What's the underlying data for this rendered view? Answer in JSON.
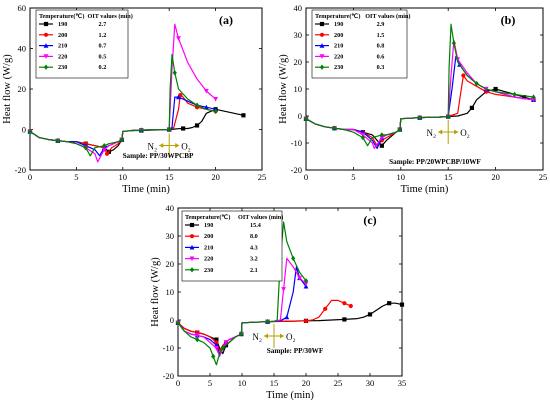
{
  "chart_data": [
    {
      "type": "line",
      "panel_label": "(a)",
      "sample": "Sample: PP/30WPCBP",
      "xlabel": "Time (min)",
      "ylabel": "Heat flow (W/g)",
      "xlim": [
        0,
        25
      ],
      "ylim": [
        -20,
        60
      ],
      "xticks": [
        0,
        5,
        10,
        15,
        20,
        25
      ],
      "yticks": [
        -20,
        0,
        20,
        40,
        60
      ],
      "legend_header": {
        "temperature": "Temperature(℃)",
        "oit": "OIT values (min)"
      },
      "legend_placement": "top-left",
      "gas_switch": {
        "before": "N₂",
        "after": "O₂",
        "x": 15
      },
      "series": [
        {
          "name": "190",
          "oit": "2.7",
          "color": "#000000",
          "marker": "square",
          "x": [
            0,
            1,
            2,
            3,
            4,
            5,
            6,
            7,
            8,
            8.5,
            9,
            9.5,
            9.9,
            10,
            11,
            12,
            13,
            14,
            15,
            15.5,
            16,
            16.5,
            17,
            17.5,
            18,
            18.5,
            19,
            20,
            21,
            22,
            23
          ],
          "y": [
            -1,
            -4,
            -5,
            -5.5,
            -6,
            -6,
            -7,
            -8,
            -9,
            -11,
            -10,
            -8,
            -5,
            -1,
            -0.5,
            -0.5,
            -0.3,
            -0.2,
            0,
            0.2,
            0.4,
            0.5,
            0.5,
            1,
            2,
            4,
            8,
            10,
            9,
            8,
            7
          ]
        },
        {
          "name": "200",
          "oit": "1.2",
          "color": "#ff0000",
          "marker": "circle",
          "x": [
            0,
            1,
            2,
            3,
            4,
            5,
            6,
            7,
            8,
            8.3,
            8.8,
            9.5,
            9.9,
            10,
            11,
            12,
            13,
            14,
            15,
            15.5,
            16,
            16.2,
            16.5,
            17,
            18,
            19,
            20
          ],
          "y": [
            -1,
            -4,
            -5,
            -5.5,
            -6,
            -6,
            -7,
            -8,
            -9,
            -12,
            -9,
            -7,
            -5,
            -1,
            -0.5,
            -0.3,
            -0.2,
            -0.1,
            0,
            1,
            10,
            17,
            16,
            13,
            11,
            10,
            9
          ]
        },
        {
          "name": "210",
          "oit": "0.7",
          "color": "#0000ff",
          "marker": "triangle",
          "x": [
            0,
            1,
            2,
            3,
            4,
            5,
            6,
            7,
            7.5,
            8,
            8.5,
            9.5,
            9.9,
            10,
            11,
            12,
            13,
            14,
            15,
            15.3,
            15.6,
            16,
            17,
            18,
            19,
            20
          ],
          "y": [
            -1,
            -4,
            -5,
            -5.5,
            -6,
            -6,
            -8,
            -10,
            -13,
            -9,
            -8,
            -6,
            -5,
            -1,
            -0.5,
            -0.3,
            -0.2,
            -0.1,
            0,
            1,
            16,
            16,
            14,
            12,
            11,
            10
          ]
        },
        {
          "name": "220",
          "oit": "0.5",
          "color": "#ff00ff",
          "marker": "triangle-down",
          "x": [
            0,
            1,
            2,
            3,
            4,
            5,
            6,
            7,
            7.3,
            8,
            8.5,
            9.5,
            9.9,
            10,
            11,
            12,
            13,
            14,
            15,
            15.3,
            15.6,
            16,
            17,
            18,
            19,
            20
          ],
          "y": [
            -1,
            -4,
            -5,
            -5.5,
            -6,
            -7,
            -9,
            -12,
            -16,
            -10,
            -8,
            -6,
            -5,
            -1,
            -0.5,
            -0.3,
            -0.2,
            -0.1,
            0,
            30,
            52,
            45,
            33,
            25,
            19,
            15
          ]
        },
        {
          "name": "230",
          "oit": "0.2",
          "color": "#008000",
          "marker": "diamond",
          "x": [
            0,
            1,
            2,
            3,
            4,
            5,
            6,
            6.5,
            7,
            8,
            8.5,
            9.5,
            9.9,
            10,
            11,
            12,
            13,
            14,
            15,
            15.1,
            15.3,
            15.6,
            16,
            17,
            18,
            19,
            20
          ],
          "y": [
            -1,
            -4,
            -5,
            -5.5,
            -6,
            -7,
            -9,
            -13,
            -9,
            -8,
            -7,
            -6,
            -5,
            -1,
            -0.5,
            -0.3,
            -0.2,
            -0.1,
            0,
            20,
            37,
            28,
            20,
            15,
            12,
            10,
            9
          ]
        }
      ]
    },
    {
      "type": "line",
      "panel_label": "(b)",
      "sample": "Sample: PP/20WPCBP/10WF",
      "xlabel": "Time (min)",
      "ylabel": "Heat flow (W/g)",
      "xlim": [
        0,
        25
      ],
      "ylim": [
        -20,
        40
      ],
      "xticks": [
        0,
        5,
        10,
        15,
        20,
        25
      ],
      "yticks": [
        -20,
        -10,
        0,
        10,
        20,
        30,
        40
      ],
      "legend_header": {
        "temperature": "Temperature(℃)",
        "oit": "OIT values (min)"
      },
      "legend_placement": "top-left",
      "gas_switch": {
        "before": "N₂",
        "after": "O₂",
        "x": 15
      },
      "series": [
        {
          "name": "190",
          "oit": "2.9",
          "color": "#000000",
          "marker": "square",
          "x": [
            0,
            1,
            2,
            3,
            4,
            5,
            6,
            7,
            7.5,
            8,
            8.5,
            9.5,
            9.9,
            10,
            11,
            12,
            13,
            14,
            15,
            16,
            17,
            17.5,
            18,
            19,
            20,
            21,
            22,
            23,
            24
          ],
          "y": [
            -1,
            -3,
            -4,
            -4.5,
            -5,
            -5,
            -6,
            -7,
            -9,
            -11,
            -9,
            -6,
            -5,
            -1,
            -0.8,
            -0.6,
            -0.5,
            -0.4,
            -0.2,
            0,
            1,
            3,
            6,
            9,
            10,
            9,
            8,
            7,
            6
          ]
        },
        {
          "name": "200",
          "oit": "1.5",
          "color": "#ff0000",
          "marker": "circle",
          "x": [
            0,
            1,
            2,
            3,
            4,
            5,
            6,
            7,
            7.5,
            8,
            8.5,
            9.5,
            9.9,
            10,
            11,
            12,
            13,
            14,
            15,
            16,
            16.3,
            16.6,
            17,
            18,
            19,
            20,
            22,
            24
          ],
          "y": [
            -1,
            -3,
            -4,
            -4.5,
            -5,
            -5,
            -6,
            -8,
            -11,
            -9,
            -8,
            -6,
            -5,
            -1,
            -0.8,
            -0.6,
            -0.5,
            -0.4,
            -0.2,
            1,
            8,
            15,
            13,
            11,
            9,
            8,
            7,
            6
          ]
        },
        {
          "name": "210",
          "oit": "0.8",
          "color": "#0000ff",
          "marker": "triangle",
          "x": [
            0,
            1,
            2,
            3,
            4,
            5,
            6,
            7,
            7.5,
            8,
            8.5,
            9.5,
            9.9,
            10,
            11,
            12,
            13,
            14,
            15,
            15.4,
            15.8,
            16.2,
            17,
            18,
            19,
            20,
            22,
            24
          ],
          "y": [
            -1,
            -3,
            -4,
            -4.5,
            -5,
            -5,
            -6,
            -9,
            -12,
            -8,
            -7,
            -6,
            -5,
            -1,
            -0.8,
            -0.6,
            -0.5,
            -0.4,
            -0.2,
            10,
            22,
            19,
            15,
            12,
            10,
            9,
            7,
            6
          ]
        },
        {
          "name": "220",
          "oit": "0.6",
          "color": "#ff00ff",
          "marker": "triangle-down",
          "x": [
            0,
            1,
            2,
            3,
            4,
            5,
            6,
            7,
            7.2,
            8,
            8.5,
            9.5,
            9.9,
            10,
            11,
            12,
            13,
            14,
            15,
            15.3,
            15.6,
            16,
            17,
            18,
            19,
            20,
            22,
            24
          ],
          "y": [
            -1,
            -3,
            -4,
            -4.5,
            -5,
            -5,
            -7,
            -10,
            -12,
            -8,
            -7,
            -6,
            -5,
            -1,
            -0.8,
            -0.6,
            -0.5,
            -0.4,
            -0.2,
            15,
            28,
            21,
            16,
            12,
            10,
            9,
            7,
            6
          ]
        },
        {
          "name": "230",
          "oit": "0.3",
          "color": "#008000",
          "marker": "diamond",
          "x": [
            0,
            1,
            2,
            3,
            4,
            5,
            6,
            6.5,
            7,
            8,
            8.5,
            9.5,
            9.9,
            10,
            11,
            12,
            13,
            14,
            15,
            15.1,
            15.3,
            15.6,
            16,
            17,
            18,
            19,
            20,
            22,
            24
          ],
          "y": [
            -1,
            -3,
            -4,
            -4.5,
            -5,
            -6,
            -8,
            -11,
            -8,
            -7,
            -7,
            -6,
            -5,
            -1,
            -0.8,
            -0.6,
            -0.5,
            -0.4,
            -0.2,
            18,
            34,
            27,
            20,
            15,
            12,
            10,
            9,
            8,
            7
          ]
        }
      ]
    },
    {
      "type": "line",
      "panel_label": "(c)",
      "sample": "Sample:  PP/30WF",
      "xlabel": "Time (min)",
      "ylabel": "Heat flow (W/g)",
      "xlim": [
        0,
        35
      ],
      "ylim": [
        -20,
        40
      ],
      "xticks": [
        0,
        5,
        10,
        15,
        20,
        25,
        30,
        35
      ],
      "yticks": [
        -20,
        -10,
        0,
        10,
        20,
        30,
        40
      ],
      "legend_header": {
        "temperature": "Temperature(℃)",
        "oit": "OIT values (min)"
      },
      "legend_placement": "top-left",
      "gas_switch": {
        "before": "N₂",
        "after": "O₂",
        "x": 15
      },
      "series": [
        {
          "name": "190",
          "oit": "15.4",
          "color": "#000000",
          "marker": "square",
          "x": [
            0,
            1,
            2,
            3,
            4,
            5,
            6,
            6.5,
            7,
            7.5,
            8,
            9,
            9.9,
            10,
            12,
            14,
            16,
            18,
            20,
            22,
            24,
            26,
            28,
            29,
            30,
            31,
            32,
            33,
            34,
            35
          ],
          "y": [
            -1,
            -3,
            -4,
            -4.5,
            -5,
            -6,
            -7,
            -10,
            -12,
            -9,
            -8,
            -6,
            -5,
            -1,
            -0.8,
            -0.6,
            -0.5,
            -0.4,
            -0.3,
            -0.2,
            0,
            0.2,
            0.5,
            1,
            2,
            3.5,
            5,
            6,
            6,
            5.5
          ]
        },
        {
          "name": "200",
          "oit": "8.0",
          "color": "#ff0000",
          "marker": "circle",
          "x": [
            0,
            1,
            2,
            3,
            4,
            5,
            6,
            6.5,
            7,
            7.5,
            8,
            9,
            9.9,
            10,
            12,
            14,
            16,
            18,
            20,
            21,
            22,
            23,
            24,
            25,
            26,
            27
          ],
          "y": [
            -1,
            -3,
            -4,
            -4.5,
            -5,
            -6,
            -8,
            -11,
            -9,
            -8,
            -7,
            -6,
            -5,
            -1,
            -0.8,
            -0.6,
            -0.5,
            -0.4,
            -0.3,
            0,
            1,
            4,
            7,
            7,
            6,
            5
          ]
        },
        {
          "name": "210",
          "oit": "4.3",
          "color": "#0000ff",
          "marker": "triangle",
          "x": [
            0,
            1,
            2,
            3,
            4,
            5,
            6,
            6.5,
            7,
            7.5,
            8,
            9,
            9.9,
            10,
            12,
            14,
            15,
            16,
            17,
            18,
            18.5,
            19,
            20
          ],
          "y": [
            -1,
            -4,
            -5,
            -5.5,
            -6,
            -7,
            -9,
            -12,
            -10,
            -8,
            -7,
            -6,
            -5,
            -1,
            -0.8,
            -0.6,
            -0.5,
            -0.3,
            1,
            10,
            19,
            15,
            12
          ]
        },
        {
          "name": "220",
          "oit": "3.2",
          "color": "#ff00ff",
          "marker": "triangle-down",
          "x": [
            0,
            1,
            2,
            3,
            4,
            5,
            6,
            6.5,
            7,
            7.5,
            8,
            9,
            9.9,
            10,
            12,
            14,
            15,
            16,
            16.5,
            17,
            18,
            19,
            20
          ],
          "y": [
            -1,
            -4,
            -5,
            -5.5,
            -6,
            -8,
            -10,
            -13,
            -10,
            -8,
            -7,
            -6,
            -5,
            -1,
            -0.8,
            -0.6,
            -0.5,
            0,
            11,
            22,
            19,
            15,
            13
          ]
        },
        {
          "name": "230",
          "oit": "2.1",
          "color": "#008000",
          "marker": "diamond",
          "x": [
            0,
            1,
            2,
            3,
            4,
            5,
            5.5,
            6,
            6.5,
            7,
            8,
            9,
            9.9,
            10,
            12,
            14,
            15,
            15.5,
            16,
            16.5,
            17,
            18,
            19,
            20
          ],
          "y": [
            -1,
            -4,
            -6,
            -7,
            -8,
            -10,
            -13,
            -16,
            -12,
            -10,
            -8,
            -6,
            -5,
            -1,
            -0.8,
            -0.6,
            -0.5,
            0,
            22,
            35,
            28,
            22,
            17,
            14
          ]
        }
      ]
    }
  ]
}
